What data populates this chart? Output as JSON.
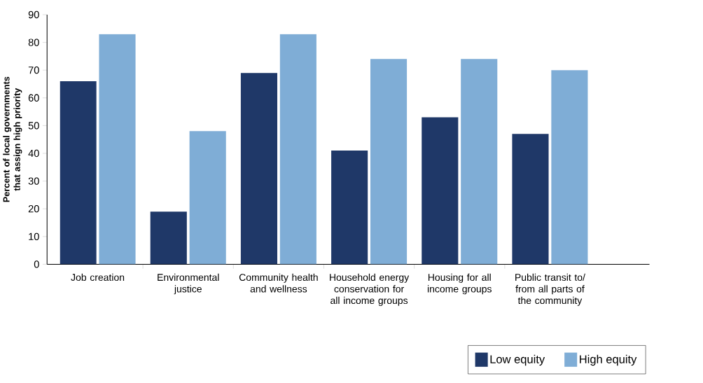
{
  "chart_data": {
    "type": "bar",
    "ylabel": "Percent of local governments that assign high priority",
    "categories": [
      "Job creation",
      "Environmental justice",
      "Community health and wellness",
      "Household energy conservation for all income groups",
      "Housing for all income groups",
      "Public transit to/ from all parts of the community"
    ],
    "series": [
      {
        "name": "Low equity",
        "color": "#1f3868",
        "values": [
          66,
          19,
          69,
          41,
          53,
          47
        ]
      },
      {
        "name": "High equity",
        "color": "#7fadd6",
        "values": [
          83,
          48,
          83,
          74,
          74,
          70
        ]
      }
    ],
    "ylim": [
      0,
      90
    ],
    "yticks": [
      0,
      10,
      20,
      30,
      40,
      50,
      60,
      70,
      80,
      90
    ],
    "grid": false,
    "legend": "bottom right"
  }
}
